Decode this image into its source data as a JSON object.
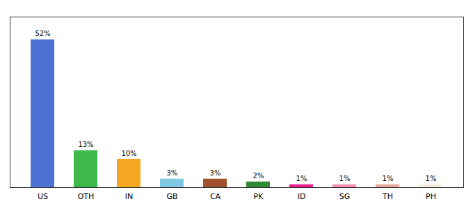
{
  "chart_data": {
    "type": "bar",
    "categories": [
      "US",
      "OTH",
      "IN",
      "GB",
      "CA",
      "PK",
      "ID",
      "SG",
      "TH",
      "PH"
    ],
    "values": [
      52,
      13,
      10,
      3,
      3,
      2,
      1,
      1,
      1,
      1
    ],
    "value_labels": [
      "52%",
      "13%",
      "10%",
      "3%",
      "3%",
      "2%",
      "1%",
      "1%",
      "1%",
      "1%"
    ],
    "colors": [
      "#4d72d4",
      "#3db84a",
      "#f5a623",
      "#7ec8e3",
      "#a0522d",
      "#2e8b34",
      "#e91e8c",
      "#f48fb1",
      "#e8a89c",
      "#f5f0dc"
    ],
    "ylim": [
      0,
      60
    ],
    "data_labels": true,
    "tick_labels": "x"
  }
}
